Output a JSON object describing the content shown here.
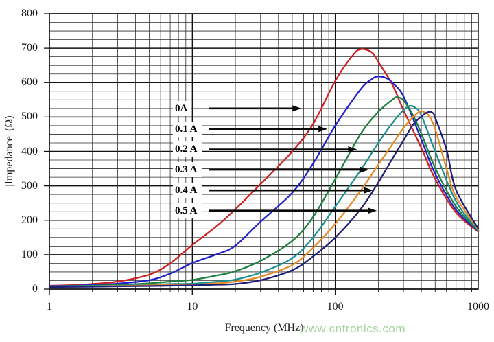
{
  "watermark": {
    "text": "www.cntronics.com",
    "color": "#a3d49b"
  },
  "chart_data": {
    "type": "line",
    "title": "",
    "xlabel": "Frequency (MHz)",
    "ylabel": "|Impedance| (Ω)",
    "x_scale": "log",
    "xlim": [
      1,
      1000
    ],
    "ylim": [
      0,
      800
    ],
    "y_major_step": 100,
    "y_minor_step": 25,
    "grid": "both",
    "legend_position": "none",
    "x_ticks": [
      1,
      10,
      100,
      1000
    ],
    "x_tick_labels": [
      "1",
      "10",
      "100",
      "1000"
    ],
    "y_ticks": [
      0,
      100,
      200,
      300,
      400,
      500,
      600,
      700,
      800
    ],
    "y_tick_labels": [
      "0",
      "100",
      "200",
      "300",
      "400",
      "500",
      "600",
      "700",
      "800"
    ],
    "series": [
      {
        "name": "0A",
        "color": "#cc2222",
        "points": [
          [
            1,
            10
          ],
          [
            1.5,
            12
          ],
          [
            2,
            15
          ],
          [
            3,
            22
          ],
          [
            5,
            42
          ],
          [
            7,
            75
          ],
          [
            10,
            128
          ],
          [
            15,
            185
          ],
          [
            20,
            232
          ],
          [
            30,
            305
          ],
          [
            50,
            400
          ],
          [
            70,
            480
          ],
          [
            100,
            605
          ],
          [
            130,
            675
          ],
          [
            150,
            697
          ],
          [
            180,
            688
          ],
          [
            200,
            660
          ],
          [
            250,
            595
          ],
          [
            300,
            520
          ],
          [
            400,
            410
          ],
          [
            500,
            320
          ],
          [
            700,
            222
          ],
          [
            1000,
            167
          ]
        ]
      },
      {
        "name": "0.1 A",
        "color": "#2222cc",
        "points": [
          [
            1,
            9
          ],
          [
            1.5,
            10
          ],
          [
            2,
            12
          ],
          [
            3,
            16
          ],
          [
            5,
            26
          ],
          [
            7,
            45
          ],
          [
            10,
            76
          ],
          [
            15,
            102
          ],
          [
            20,
            126
          ],
          [
            30,
            196
          ],
          [
            50,
            280
          ],
          [
            70,
            365
          ],
          [
            100,
            475
          ],
          [
            150,
            580
          ],
          [
            180,
            610
          ],
          [
            200,
            618
          ],
          [
            230,
            612
          ],
          [
            250,
            600
          ],
          [
            300,
            560
          ],
          [
            400,
            435
          ],
          [
            500,
            335
          ],
          [
            700,
            230
          ],
          [
            1000,
            169
          ]
        ]
      },
      {
        "name": "0.2 A",
        "color": "#1f8040",
        "points": [
          [
            1,
            8
          ],
          [
            2,
            10
          ],
          [
            3,
            12
          ],
          [
            5,
            17
          ],
          [
            7,
            22
          ],
          [
            10,
            27
          ],
          [
            15,
            40
          ],
          [
            20,
            52
          ],
          [
            30,
            82
          ],
          [
            50,
            140
          ],
          [
            70,
            210
          ],
          [
            100,
            320
          ],
          [
            150,
            450
          ],
          [
            200,
            515
          ],
          [
            250,
            550
          ],
          [
            270,
            558
          ],
          [
            300,
            548
          ],
          [
            350,
            505
          ],
          [
            400,
            452
          ],
          [
            500,
            352
          ],
          [
            700,
            240
          ],
          [
            1000,
            170
          ]
        ]
      },
      {
        "name": "0.3 A",
        "color": "#1f9090",
        "points": [
          [
            1,
            8
          ],
          [
            2,
            9
          ],
          [
            3,
            10
          ],
          [
            5,
            13
          ],
          [
            7,
            15
          ],
          [
            10,
            16
          ],
          [
            15,
            22
          ],
          [
            20,
            28
          ],
          [
            30,
            48
          ],
          [
            50,
            90
          ],
          [
            70,
            150
          ],
          [
            100,
            240
          ],
          [
            150,
            345
          ],
          [
            200,
            425
          ],
          [
            250,
            482
          ],
          [
            300,
            520
          ],
          [
            330,
            532
          ],
          [
            360,
            528
          ],
          [
            400,
            505
          ],
          [
            500,
            400
          ],
          [
            700,
            255
          ],
          [
            1000,
            172
          ]
        ]
      },
      {
        "name": "0.4 A",
        "color": "#e68a28",
        "points": [
          [
            1,
            7
          ],
          [
            2,
            8
          ],
          [
            3,
            9
          ],
          [
            5,
            11
          ],
          [
            7,
            12
          ],
          [
            10,
            13
          ],
          [
            15,
            17
          ],
          [
            20,
            22
          ],
          [
            30,
            36
          ],
          [
            50,
            70
          ],
          [
            70,
            120
          ],
          [
            100,
            190
          ],
          [
            150,
            285
          ],
          [
            200,
            362
          ],
          [
            250,
            420
          ],
          [
            300,
            468
          ],
          [
            350,
            500
          ],
          [
            390,
            516
          ],
          [
            420,
            514
          ],
          [
            450,
            505
          ],
          [
            500,
            465
          ],
          [
            600,
            350
          ],
          [
            700,
            268
          ],
          [
            1000,
            173
          ]
        ]
      },
      {
        "name": "0.5 A",
        "color": "#202078",
        "points": [
          [
            1,
            6
          ],
          [
            2,
            7
          ],
          [
            3,
            8
          ],
          [
            5,
            9
          ],
          [
            7,
            10
          ],
          [
            10,
            11
          ],
          [
            15,
            13
          ],
          [
            20,
            15
          ],
          [
            30,
            26
          ],
          [
            50,
            55
          ],
          [
            70,
            95
          ],
          [
            100,
            150
          ],
          [
            150,
            232
          ],
          [
            200,
            310
          ],
          [
            250,
            378
          ],
          [
            300,
            432
          ],
          [
            350,
            478
          ],
          [
            400,
            502
          ],
          [
            450,
            515
          ],
          [
            480,
            512
          ],
          [
            500,
            498
          ],
          [
            600,
            405
          ],
          [
            700,
            288
          ],
          [
            1000,
            176
          ]
        ]
      }
    ],
    "annotations": [
      {
        "label": "0A",
        "y_value": 525,
        "arrow_tip_freq": 58
      },
      {
        "label": "0.1 A",
        "y_value": 465,
        "arrow_tip_freq": 88
      },
      {
        "label": "0.2 A",
        "y_value": 406,
        "arrow_tip_freq": 142
      },
      {
        "label": "0.3 A",
        "y_value": 347,
        "arrow_tip_freq": 172
      },
      {
        "label": "0.4 A",
        "y_value": 287,
        "arrow_tip_freq": 184
      },
      {
        "label": "0.5 A",
        "y_value": 228,
        "arrow_tip_freq": 195
      }
    ]
  }
}
